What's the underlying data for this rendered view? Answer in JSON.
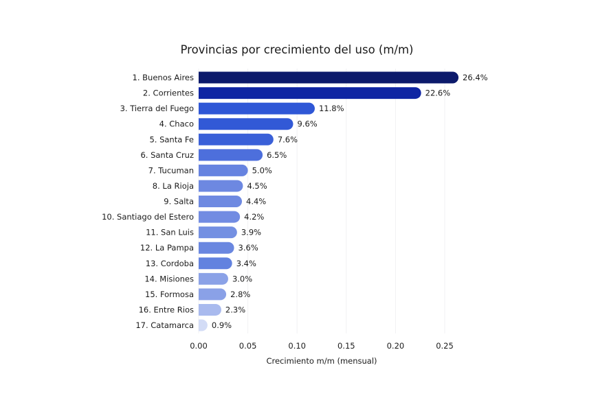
{
  "chart_data": {
    "type": "bar",
    "orientation": "horizontal",
    "title": "Provincias por crecimiento del uso (m/m)",
    "xlabel": "Crecimiento m/m (mensual)",
    "ylabel": "",
    "xlim": [
      0,
      0.25
    ],
    "xticks": [
      0,
      0.05,
      0.1,
      0.15,
      0.2,
      0.25
    ],
    "xtick_labels": [
      "0.00",
      "0.05",
      "0.10",
      "0.15",
      "0.20",
      "0.25"
    ],
    "grid": "vertical, faint",
    "categories": [
      "1. Buenos Aires",
      "2. Corrientes",
      "3. Tierra del Fuego",
      "4. Chaco",
      "5. Santa Fe",
      "6. Santa Cruz",
      "7. Tucuman",
      "8. La Rioja",
      "9. Salta",
      "10. Santiago del Estero",
      "11. San Luis",
      "12. La Pampa",
      "13. Cordoba",
      "14. Misiones",
      "15. Formosa",
      "16. Entre Rios",
      "17. Catamarca"
    ],
    "values": [
      0.264,
      0.226,
      0.118,
      0.096,
      0.076,
      0.065,
      0.05,
      0.045,
      0.044,
      0.042,
      0.039,
      0.036,
      0.034,
      0.03,
      0.028,
      0.023,
      0.009
    ],
    "data_labels": [
      "26.4%",
      "22.6%",
      "11.8%",
      "9.6%",
      "7.6%",
      "6.5%",
      "5.0%",
      "4.5%",
      "4.4%",
      "4.2%",
      "3.9%",
      "3.6%",
      "3.4%",
      "3.0%",
      "2.8%",
      "2.3%",
      "0.9%"
    ],
    "colors": [
      "#0c1a6b",
      "#0f25a3",
      "#2f57d6",
      "#3259d6",
      "#3a60d8",
      "#4d6fdc",
      "#6683e0",
      "#6d88e1",
      "#6e89e1",
      "#728ce2",
      "#7490e2",
      "#6a87e0",
      "#6282df",
      "#8ba2e7",
      "#8aa1e7",
      "#a9baee",
      "#d3dcf6"
    ]
  }
}
